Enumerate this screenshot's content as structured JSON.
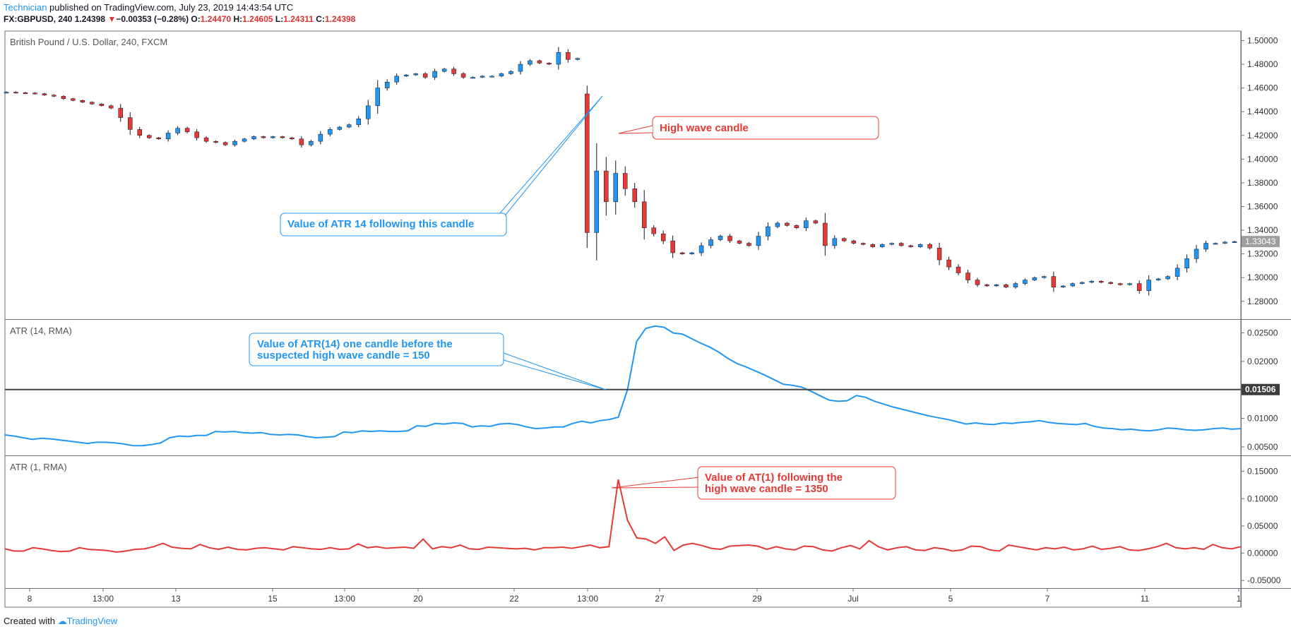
{
  "header": {
    "author": "Technician",
    "published": " published on TradingView.com, July 23, 2019 14:43:54 UTC",
    "symbol": "FX:GBPUSD, 240",
    "last": "1.24398",
    "arrow": "▼",
    "change": "−0.00353 (−0.28%)",
    "o_label": "O:",
    "o_val": "1.24470",
    "h_label": "H:",
    "h_val": "1.24605",
    "l_label": "L:",
    "l_val": "1.24311",
    "c_label": "C:",
    "c_val": "1.24398"
  },
  "footer": {
    "created": "Created with",
    "brand": "TradingView"
  },
  "colors": {
    "up": "#2196f3",
    "down": "#e53935",
    "atr14": "#2196f3",
    "atr1": "#e53935",
    "annotation_red": "#e53935",
    "annotation_blue": "#2196f3"
  },
  "chart_data": [
    {
      "type": "candlestick",
      "title": "British Pound / U.S. Dollar, 240, FXCM",
      "ylim": [
        1.265,
        1.508
      ],
      "yticks": [
        "1.50000",
        "1.48000",
        "1.46000",
        "1.44000",
        "1.42000",
        "1.40000",
        "1.38000",
        "1.36000",
        "1.34000",
        "1.32000",
        "1.30000",
        "1.28000"
      ],
      "last_price_label": "1.33043",
      "close_series": [
        1.4565,
        1.456,
        1.4558,
        1.4552,
        1.454,
        1.453,
        1.451,
        1.4495,
        1.448,
        1.4465,
        1.445,
        1.443,
        1.435,
        1.425,
        1.42,
        1.418,
        1.417,
        1.422,
        1.426,
        1.423,
        1.418,
        1.415,
        1.414,
        1.412,
        1.415,
        1.417,
        1.419,
        1.418,
        1.419,
        1.418,
        1.417,
        1.412,
        1.415,
        1.421,
        1.425,
        1.427,
        1.429,
        1.434,
        1.445,
        1.46,
        1.465,
        1.47,
        1.471,
        1.472,
        1.469,
        1.474,
        1.476,
        1.472,
        1.469,
        1.469,
        1.47,
        1.47,
        1.472,
        1.474,
        1.48,
        1.483,
        1.481,
        1.48,
        1.49,
        1.484,
        1.485,
        1.457,
        1.39,
        1.364,
        1.388,
        1.375,
        1.364,
        1.342,
        1.337,
        1.331,
        1.321,
        1.32,
        1.321,
        1.327,
        1.332,
        1.335,
        1.331,
        1.329,
        1.327,
        1.335,
        1.343,
        1.346,
        1.344,
        1.342,
        1.348,
        1.346,
        1.327,
        1.333,
        1.331,
        1.329,
        1.328,
        1.326,
        1.328,
        1.329,
        1.327,
        1.326,
        1.328,
        1.325,
        1.315,
        1.309,
        1.304,
        1.298,
        1.294,
        1.293,
        1.294,
        1.292,
        1.295,
        1.298,
        1.3,
        1.301,
        1.292,
        1.293,
        1.295,
        1.296,
        1.297,
        1.296,
        1.295,
        1.294,
        1.295,
        1.289,
        1.298,
        1.299,
        1.301,
        1.308,
        1.316,
        1.324,
        1.329,
        1.329,
        1.33,
        1.3304
      ],
      "high_wave_candle": {
        "open": 1.455,
        "high": 1.462,
        "low": 1.325,
        "close": 1.338
      },
      "xticks": [
        "8",
        "13:00",
        "13",
        "15",
        "13:00",
        "20",
        "22",
        "13:00",
        "27",
        "29",
        "Jul",
        "5",
        "7",
        "11",
        "1"
      ]
    },
    {
      "type": "line",
      "title": "ATR (14, RMA)",
      "ylim": [
        0.0035,
        0.0273
      ],
      "yticks": [
        "0.02500",
        "0.02000",
        "0.01500",
        "0.01000",
        "0.00500"
      ],
      "horizontal_line_label": "0.01506",
      "horizontal_line_value": 0.01506,
      "values": [
        0.0071,
        0.0069,
        0.0066,
        0.0063,
        0.0065,
        0.0064,
        0.0062,
        0.006,
        0.0058,
        0.0056,
        0.0058,
        0.0058,
        0.0057,
        0.0055,
        0.0052,
        0.0052,
        0.0054,
        0.0057,
        0.0066,
        0.0069,
        0.0068,
        0.007,
        0.007,
        0.0077,
        0.0076,
        0.0077,
        0.0075,
        0.0074,
        0.0075,
        0.0072,
        0.0071,
        0.0072,
        0.0071,
        0.0068,
        0.0066,
        0.0067,
        0.0068,
        0.0076,
        0.0075,
        0.0078,
        0.0077,
        0.0078,
        0.0077,
        0.0077,
        0.0078,
        0.0087,
        0.0086,
        0.0091,
        0.009,
        0.0092,
        0.0091,
        0.0085,
        0.0087,
        0.0086,
        0.009,
        0.0091,
        0.0089,
        0.0085,
        0.0082,
        0.0083,
        0.0085,
        0.0085,
        0.0091,
        0.0095,
        0.0092,
        0.0096,
        0.0098,
        0.0102,
        0.015,
        0.0235,
        0.0258,
        0.0262,
        0.026,
        0.025,
        0.0248,
        0.024,
        0.0232,
        0.0225,
        0.0216,
        0.0205,
        0.0196,
        0.019,
        0.0183,
        0.0176,
        0.0168,
        0.016,
        0.0158,
        0.0155,
        0.0148,
        0.014,
        0.0132,
        0.013,
        0.0131,
        0.014,
        0.0137,
        0.013,
        0.0125,
        0.012,
        0.0116,
        0.0112,
        0.0108,
        0.0104,
        0.0101,
        0.0098,
        0.0094,
        0.009,
        0.0092,
        0.009,
        0.0089,
        0.0092,
        0.0091,
        0.0093,
        0.0094,
        0.0096,
        0.0093,
        0.0091,
        0.009,
        0.0089,
        0.0091,
        0.0086,
        0.0083,
        0.0082,
        0.008,
        0.0081,
        0.0079,
        0.0078,
        0.008,
        0.0083,
        0.0082,
        0.008,
        0.0079,
        0.008,
        0.0082,
        0.0083,
        0.0081,
        0.0082
      ]
    },
    {
      "type": "line",
      "title": "ATR (1, RMA)",
      "ylim": [
        -0.064,
        0.178
      ],
      "yticks": [
        "0.15000",
        "0.10000",
        "0.05000",
        "0.00000",
        "-0.05000"
      ],
      "values": [
        0.008,
        0.004,
        0.004,
        0.01,
        0.008,
        0.005,
        0.003,
        0.004,
        0.01,
        0.007,
        0.006,
        0.005,
        0.002,
        0.004,
        0.007,
        0.008,
        0.012,
        0.018,
        0.011,
        0.009,
        0.008,
        0.016,
        0.01,
        0.007,
        0.011,
        0.007,
        0.006,
        0.009,
        0.01,
        0.008,
        0.006,
        0.012,
        0.01,
        0.008,
        0.007,
        0.01,
        0.007,
        0.008,
        0.017,
        0.01,
        0.012,
        0.009,
        0.01,
        0.011,
        0.009,
        0.026,
        0.008,
        0.012,
        0.01,
        0.015,
        0.008,
        0.007,
        0.011,
        0.01,
        0.009,
        0.008,
        0.009,
        0.006,
        0.01,
        0.01,
        0.011,
        0.009,
        0.012,
        0.015,
        0.01,
        0.012,
        0.135,
        0.06,
        0.028,
        0.026,
        0.018,
        0.03,
        0.005,
        0.015,
        0.018,
        0.014,
        0.009,
        0.007,
        0.013,
        0.014,
        0.015,
        0.013,
        0.007,
        0.012,
        0.008,
        0.006,
        0.013,
        0.012,
        0.006,
        0.004,
        0.01,
        0.014,
        0.008,
        0.023,
        0.012,
        0.006,
        0.01,
        0.012,
        0.006,
        0.005,
        0.01,
        0.008,
        0.004,
        0.006,
        0.013,
        0.012,
        0.006,
        0.004,
        0.015,
        0.012,
        0.009,
        0.006,
        0.01,
        0.008,
        0.011,
        0.006,
        0.008,
        0.013,
        0.007,
        0.009,
        0.012,
        0.006,
        0.005,
        0.008,
        0.012,
        0.018,
        0.01,
        0.008,
        0.01,
        0.007,
        0.016,
        0.01,
        0.008,
        0.012
      ]
    }
  ],
  "annotations": {
    "high_wave": "High wave candle",
    "atr14_after": "Value of ATR 14 following this candle",
    "atr14_before_line1": "Value of ATR(14) one candle before the",
    "atr14_before_line2": "suspected high wave candle = 150",
    "at1_line1": "Value of AT(1) following the",
    "at1_line2": "high wave candle = 1350"
  }
}
